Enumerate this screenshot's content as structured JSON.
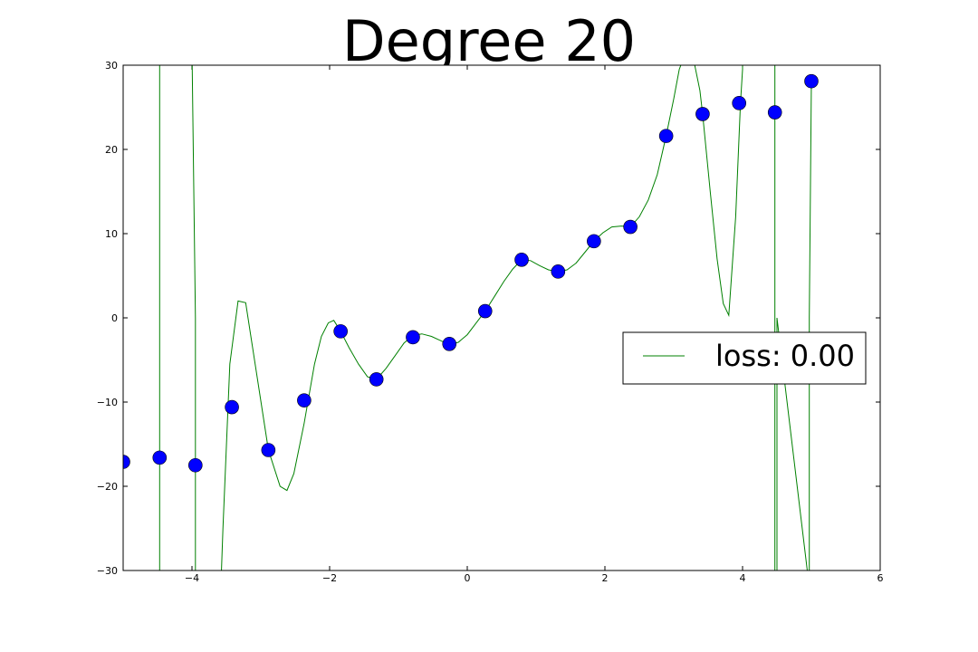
{
  "chart_data": {
    "type": "scatter",
    "title": "Degree 20",
    "xlabel": "",
    "ylabel": "",
    "xlim": [
      -5,
      6
    ],
    "ylim": [
      -30,
      30
    ],
    "xticks": [
      -4,
      -2,
      0,
      2,
      4,
      6
    ],
    "yticks": [
      -30,
      -20,
      -10,
      0,
      10,
      20,
      30
    ],
    "xtick_labels": [
      "−4",
      "−2",
      "0",
      "2",
      "4",
      "6"
    ],
    "ytick_labels": [
      "−30",
      "−20",
      "−10",
      "0",
      "10",
      "20",
      "30"
    ],
    "grid": false,
    "legend_position": "right",
    "points": {
      "color": "#0000ff",
      "x": [
        -5.0,
        -4.47,
        -3.95,
        -3.42,
        -2.89,
        -2.37,
        -1.84,
        -1.32,
        -0.79,
        -0.26,
        0.26,
        0.79,
        1.32,
        1.84,
        2.37,
        2.89,
        3.42,
        3.95,
        4.47,
        5.0
      ],
      "y": [
        -17.1,
        -16.6,
        -17.5,
        -10.6,
        -15.7,
        -9.8,
        -1.6,
        -7.3,
        -2.3,
        -3.1,
        0.8,
        6.9,
        5.5,
        9.1,
        10.8,
        21.6,
        24.2,
        25.5,
        24.4,
        28.1
      ]
    },
    "series": [
      {
        "name": "loss: 0.00",
        "color": "#008000",
        "x": [
          -4.47,
          -4.47,
          -4.47,
          -4.0,
          -3.95,
          -3.95,
          -3.58,
          -3.55,
          -3.45,
          -3.33,
          -3.22,
          -3.12,
          -2.89,
          -2.72,
          -2.62,
          -2.52,
          -2.37,
          -2.22,
          -2.12,
          -2.02,
          -1.94,
          -1.84,
          -1.72,
          -1.58,
          -1.45,
          -1.32,
          -1.18,
          -1.05,
          -0.92,
          -0.79,
          -0.66,
          -0.52,
          -0.39,
          -0.26,
          -0.13,
          0.0,
          0.13,
          0.26,
          0.4,
          0.53,
          0.66,
          0.79,
          0.92,
          1.05,
          1.18,
          1.32,
          1.45,
          1.58,
          1.71,
          1.84,
          1.97,
          2.1,
          2.24,
          2.37,
          2.5,
          2.63,
          2.76,
          2.89,
          3.0,
          3.08,
          3.15,
          3.28,
          3.38,
          3.42,
          3.53,
          3.63,
          3.72,
          3.8,
          3.9,
          3.97,
          4.0,
          4.0,
          4.47,
          4.47,
          4.47,
          4.5,
          4.5,
          4.97,
          4.97,
          5.0
        ],
        "y": [
          -32.0,
          0.0,
          32.0,
          32.0,
          0.0,
          -32.0,
          -32.0,
          -25.0,
          -5.5,
          2.0,
          1.8,
          -3.5,
          -15.7,
          -20.0,
          -20.5,
          -18.5,
          -12.5,
          -5.5,
          -2.2,
          -0.6,
          -0.3,
          -1.6,
          -3.5,
          -5.5,
          -7.0,
          -7.3,
          -6.0,
          -4.5,
          -3.0,
          -2.1,
          -1.9,
          -2.2,
          -2.7,
          -3.2,
          -2.9,
          -2.0,
          -0.6,
          0.8,
          2.6,
          4.3,
          5.8,
          6.9,
          6.8,
          6.2,
          5.7,
          5.5,
          5.7,
          6.5,
          7.8,
          9.1,
          10.1,
          10.8,
          10.9,
          10.8,
          12.0,
          14.0,
          17.0,
          21.6,
          26.0,
          29.5,
          31.0,
          31.0,
          27.0,
          24.2,
          15.0,
          7.0,
          1.7,
          0.3,
          12.0,
          25.5,
          29.5,
          32.0,
          32.0,
          0.0,
          -32.0,
          -32.0,
          0.0,
          -32.0,
          0.0,
          28.1
        ]
      }
    ]
  }
}
